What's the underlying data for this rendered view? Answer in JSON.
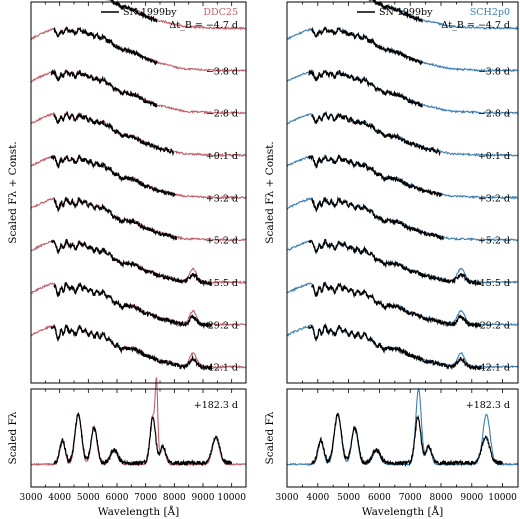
{
  "chart_data": [
    {
      "type": "line",
      "panel": "left",
      "series": [
        {
          "name": "SN 1999by",
          "color": "#000000"
        },
        {
          "name": "DDC25",
          "color": "#c0606a"
        }
      ],
      "legend_labels": [
        "SN 1999by",
        "DDC25"
      ],
      "delta_label": "Δt_B = −4.7 d",
      "epochs": [
        "−3.8 d",
        "−2.8 d",
        "+0.1 d",
        "+3.2 d",
        "+5.2 d",
        "+15.5 d",
        "+29.2 d",
        "+42.1 d"
      ],
      "ylabel": "Scaled Fλ + Const.",
      "xlim": [
        3000,
        10500
      ]
    },
    {
      "type": "line",
      "panel": "right",
      "series": [
        {
          "name": "SN 1999by",
          "color": "#000000"
        },
        {
          "name": "SCH2p0",
          "color": "#3d7fb2"
        }
      ],
      "legend_labels": [
        "SN 1999by",
        "SCH2p0"
      ],
      "delta_label": "Δt_B = −4.7 d",
      "epochs": [
        "−3.8 d",
        "−2.8 d",
        "+0.1 d",
        "+3.2 d",
        "+5.2 d",
        "+15.5 d",
        "+29.2 d",
        "+42.1 d"
      ],
      "xlim": [
        3000,
        10500
      ]
    },
    {
      "type": "line",
      "panel": "bottom-left",
      "epoch": "+182.3 d",
      "ylabel": "Scaled Fλ",
      "xlabel": "Wavelength [Å]",
      "xlim": [
        3000,
        10500
      ],
      "xticks": [
        3000,
        4000,
        5000,
        6000,
        7000,
        8000,
        9000,
        10000
      ],
      "series": [
        {
          "name": "SN 1999by",
          "color": "#000000"
        },
        {
          "name": "DDC25",
          "color": "#c0606a"
        }
      ]
    },
    {
      "type": "line",
      "panel": "bottom-right",
      "epoch": "+182.3 d",
      "xlabel": "Wavelength [Å]",
      "xlim": [
        3000,
        10500
      ],
      "xticks": [
        3000,
        4000,
        5000,
        6000,
        7000,
        8000,
        9000,
        10000
      ],
      "series": [
        {
          "name": "SN 1999by",
          "color": "#000000"
        },
        {
          "name": "SCH2p0",
          "color": "#3d7fb2"
        }
      ]
    }
  ]
}
